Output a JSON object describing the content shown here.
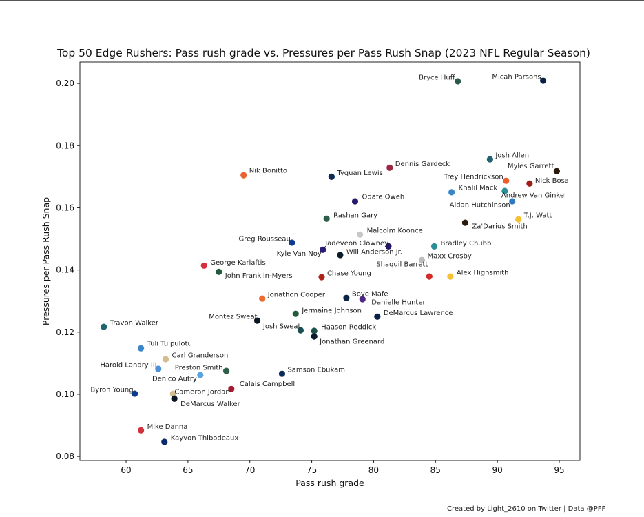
{
  "chart_data": {
    "type": "scatter",
    "title": "Top 50 Edge Rushers: Pass rush grade vs. Pressures per Pass Rush Snap (2023 NFL Regular Season)",
    "xlabel": "Pass rush grade",
    "ylabel": "Pressures per Pass Rush Snap",
    "xlim": [
      56.27,
      96.67
    ],
    "ylim": [
      0.0787,
      0.2069
    ],
    "xticks": [
      60,
      65,
      70,
      75,
      80,
      85,
      90,
      95
    ],
    "xtick_labels": [
      "60",
      "65",
      "70",
      "75",
      "80",
      "85",
      "90",
      "95"
    ],
    "yticks": [
      0.08,
      0.1,
      0.12,
      0.14,
      0.16,
      0.18,
      0.2
    ],
    "ytick_labels": [
      "0.08",
      "0.10",
      "0.12",
      "0.14",
      "0.16",
      "0.18",
      "0.20"
    ],
    "grid": false,
    "points": [
      {
        "name": "Bryce Huff",
        "x": 86.8,
        "y": 0.2007,
        "color": "#2a5a45"
      },
      {
        "name": "Micah Parsons",
        "x": 93.7,
        "y": 0.2009,
        "color": "#0b2046"
      },
      {
        "name": "Josh Allen",
        "x": 89.4,
        "y": 0.1756,
        "color": "#1f6470"
      },
      {
        "name": "Dennis Gardeck",
        "x": 81.3,
        "y": 0.1729,
        "color": "#9b2743"
      },
      {
        "name": "Myles Garrett",
        "x": 94.8,
        "y": 0.1718,
        "color": "#2b1a0c"
      },
      {
        "name": "Nik Bonitto",
        "x": 69.5,
        "y": 0.1705,
        "color": "#ea6230"
      },
      {
        "name": "Tyquan Lewis",
        "x": 76.6,
        "y": 0.17,
        "color": "#0f2a55"
      },
      {
        "name": "Trey Hendrickson",
        "x": 90.7,
        "y": 0.1687,
        "color": "#ec5d28"
      },
      {
        "name": "Nick Bosa",
        "x": 92.6,
        "y": 0.1678,
        "color": "#a01d17"
      },
      {
        "name": "Khalil Mack",
        "x": 86.3,
        "y": 0.165,
        "color": "#3a86c8"
      },
      {
        "name": "Andrew Van Ginkel",
        "x": 90.6,
        "y": 0.1654,
        "color": "#2a8f94"
      },
      {
        "name": "Odafe Oweh",
        "x": 78.5,
        "y": 0.1621,
        "color": "#26186a"
      },
      {
        "name": "Aidan Hutchinson",
        "x": 91.2,
        "y": 0.1621,
        "color": "#2f79c0"
      },
      {
        "name": "Rashan Gary",
        "x": 76.2,
        "y": 0.1565,
        "color": "#2c5e49"
      },
      {
        "name": "T.J. Watt",
        "x": 91.7,
        "y": 0.1563,
        "color": "#f4c232"
      },
      {
        "name": "Za'Darius Smith",
        "x": 87.4,
        "y": 0.1552,
        "color": "#2b1a0c"
      },
      {
        "name": "Malcolm Koonce",
        "x": 78.9,
        "y": 0.1514,
        "color": "#c7c7c7"
      },
      {
        "name": "Greg Rousseau",
        "x": 73.4,
        "y": 0.1488,
        "color": "#0b3a8f"
      },
      {
        "name": "Bradley Chubb",
        "x": 84.9,
        "y": 0.1476,
        "color": "#2a8f9a"
      },
      {
        "name": "Jadeveon Clowney",
        "x": 81.2,
        "y": 0.1476,
        "color": "#231768"
      },
      {
        "name": "Kyle Van Noy",
        "x": 75.9,
        "y": 0.1465,
        "color": "#2c1a78"
      },
      {
        "name": "Will Anderson Jr.",
        "x": 77.3,
        "y": 0.1448,
        "color": "#0a1c2c"
      },
      {
        "name": "Maxx Crosby",
        "x": 83.9,
        "y": 0.1432,
        "color": "#bdbdbd"
      },
      {
        "name": "George Karlaftis",
        "x": 66.3,
        "y": 0.1414,
        "color": "#d4303d"
      },
      {
        "name": "John Franklin-Myers",
        "x": 67.5,
        "y": 0.1394,
        "color": "#235a3e"
      },
      {
        "name": "Shaquil Barrett",
        "x": 84.5,
        "y": 0.1379,
        "color": "#d42a2a"
      },
      {
        "name": "Alex Highsmith",
        "x": 86.2,
        "y": 0.1379,
        "color": "#f4c232"
      },
      {
        "name": "Chase Young",
        "x": 75.8,
        "y": 0.1377,
        "color": "#b0231a"
      },
      {
        "name": "Jonathon Cooper",
        "x": 71.0,
        "y": 0.1308,
        "color": "#ec6b2c"
      },
      {
        "name": "Boye Mafe",
        "x": 77.8,
        "y": 0.131,
        "color": "#0b2344"
      },
      {
        "name": "Danielle Hunter",
        "x": 79.1,
        "y": 0.1306,
        "color": "#4f2683"
      },
      {
        "name": "Jermaine Johnson",
        "x": 73.7,
        "y": 0.1259,
        "color": "#235a3e"
      },
      {
        "name": "DeMarcus Lawrence",
        "x": 80.3,
        "y": 0.125,
        "color": "#0b2046"
      },
      {
        "name": "Montez Sweat",
        "x": 70.6,
        "y": 0.1237,
        "color": "#0b1624"
      },
      {
        "name": "Travon Walker",
        "x": 58.2,
        "y": 0.1217,
        "color": "#1f6470"
      },
      {
        "name": "Josh Sweat",
        "x": 74.1,
        "y": 0.1206,
        "color": "#1c4f52"
      },
      {
        "name": "Haason Reddick",
        "x": 75.2,
        "y": 0.1204,
        "color": "#1c4f45"
      },
      {
        "name": "Jonathan Greenard",
        "x": 75.2,
        "y": 0.1186,
        "color": "#0b1a2c"
      },
      {
        "name": "Tuli Tuipulotu",
        "x": 61.2,
        "y": 0.1148,
        "color": "#3a86c8"
      },
      {
        "name": "Carl Granderson",
        "x": 63.2,
        "y": 0.1113,
        "color": "#d3bc8d"
      },
      {
        "name": "Harold Landry III",
        "x": 62.6,
        "y": 0.1082,
        "color": "#4b92db"
      },
      {
        "name": "Preston Smith",
        "x": 68.1,
        "y": 0.1075,
        "color": "#2c5e49"
      },
      {
        "name": "Denico Autry",
        "x": 66.0,
        "y": 0.1062,
        "color": "#5aa2e0"
      },
      {
        "name": "Samson Ebukam",
        "x": 72.6,
        "y": 0.1066,
        "color": "#0b2a5a"
      },
      {
        "name": "Calais Campbell",
        "x": 68.5,
        "y": 0.1017,
        "color": "#a71930"
      },
      {
        "name": "Byron Young",
        "x": 60.7,
        "y": 0.1002,
        "color": "#0b3a8f"
      },
      {
        "name": "Cameron Jordan",
        "x": 63.8,
        "y": 0.1002,
        "color": "#d3bc8d"
      },
      {
        "name": "DeMarcus Walker",
        "x": 63.9,
        "y": 0.0986,
        "color": "#0b1624"
      },
      {
        "name": "Mike Danna",
        "x": 61.2,
        "y": 0.0884,
        "color": "#d4303d"
      },
      {
        "name": "Kayvon Thibodeaux",
        "x": 63.1,
        "y": 0.0847,
        "color": "#0b2a6e"
      }
    ]
  },
  "footer": {
    "credit": "Created by Light_2610 on Twitter | Data @PFF"
  }
}
